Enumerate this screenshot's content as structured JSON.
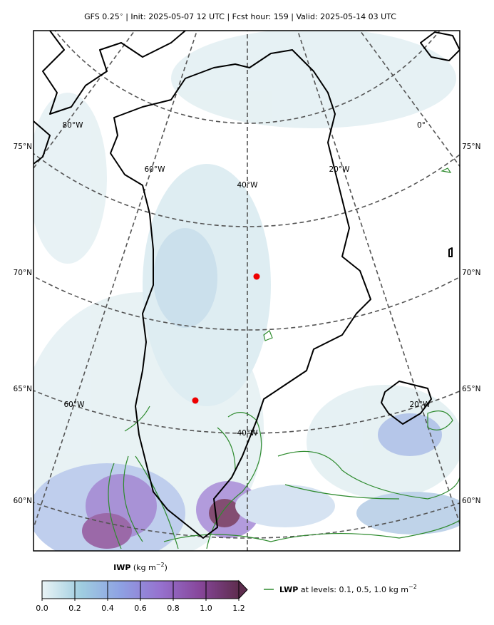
{
  "title": "GFS 0.25$^\\circ$  |  Init: 2025-05-07 12 UTC  |  Fcst hour: 159  |  Valid: 2025-05-14 03 UTC",
  "map": {
    "lon_labels_upper": [
      "80°W",
      "60°W",
      "40°W",
      "20°W",
      "0°"
    ],
    "lon_labels_lower": [
      "60°W",
      "40°W",
      "20°W"
    ],
    "lat_labels_left": [
      "75°N",
      "70°N",
      "65°N",
      "60°N"
    ],
    "lat_labels_right": [
      "75°N",
      "70°N",
      "65°N",
      "60°N"
    ]
  },
  "colorbar": {
    "label": "IWP",
    "units": "(kg m",
    "units_exponent": "−2",
    "units_close": ")",
    "limits": [
      0,
      1.2
    ],
    "ticks": [
      {
        "value": 0,
        "label": "0.0"
      },
      0.2,
      0.4,
      0.6,
      0.8,
      {
        "value": 1,
        "label": "1.0"
      },
      1.2
    ],
    "colors": [
      "#e9f3f5",
      "#9fcde0",
      "#8ea1e3",
      "#9672cf",
      "#87479b",
      "#5e2d4e"
    ]
  },
  "legend": {
    "name": "LWP",
    "text": " at levels: 0.1, 0.5, 1.0  kg m",
    "exponent": "−2",
    "color": "#2e8b2e"
  }
}
